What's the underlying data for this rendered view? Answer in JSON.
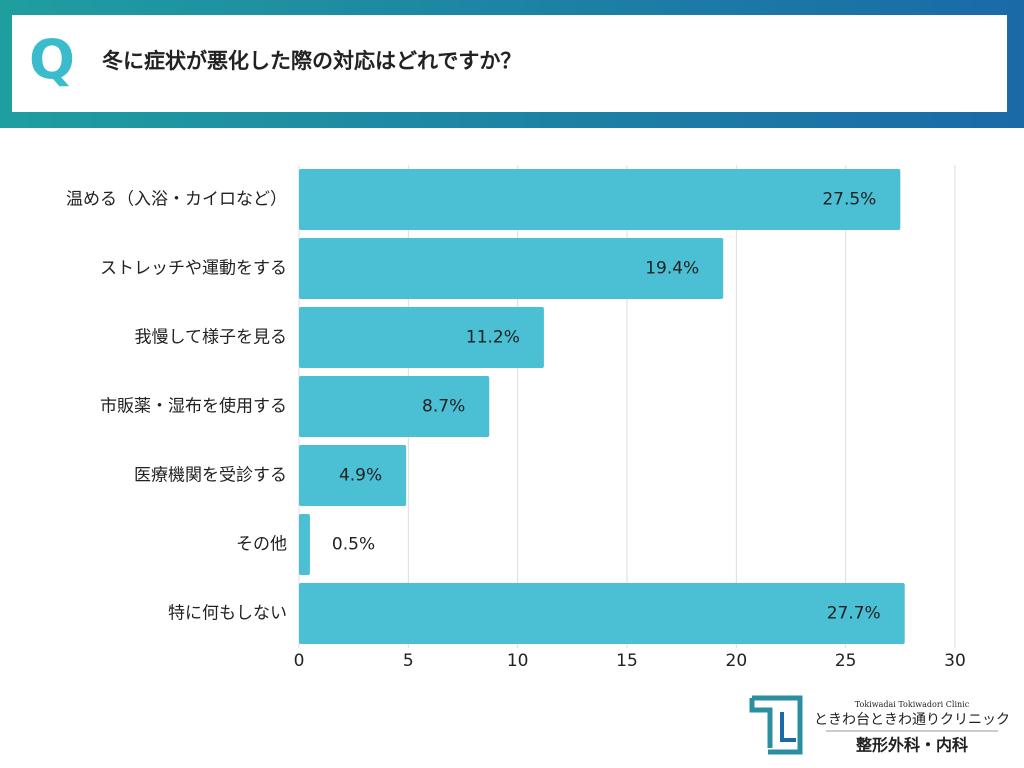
{
  "chart_data": {
    "type": "barh",
    "title_prefix": "Q",
    "title": "冬に症状が悪化した際の対応はどれですか？",
    "categories": [
      "温める（入浴・カイロなど）",
      "ストレッチや運動をする",
      "我慢して様子を見る",
      "市販薬・湿布を使用する",
      "医療機関を受診する",
      "その他",
      "特に何もしない"
    ],
    "values": [
      27.5,
      19.4,
      11.2,
      8.7,
      4.9,
      0.5,
      27.7
    ],
    "value_labels": [
      "27.5%",
      "19.4%",
      "11.2%",
      "8.7%",
      "4.9%",
      "0.5%",
      "27.7%"
    ],
    "color": "#4bbfd4",
    "xlim": [
      0,
      30
    ],
    "xticks": [
      0,
      5,
      10,
      15,
      20,
      25,
      30
    ],
    "grid": true
  },
  "logo": {
    "subtitle": "Tokiwadai Tokiwadori Clinic",
    "name": "ときわ台ときわ通りクリニック",
    "departments": "整形外科・内科"
  }
}
